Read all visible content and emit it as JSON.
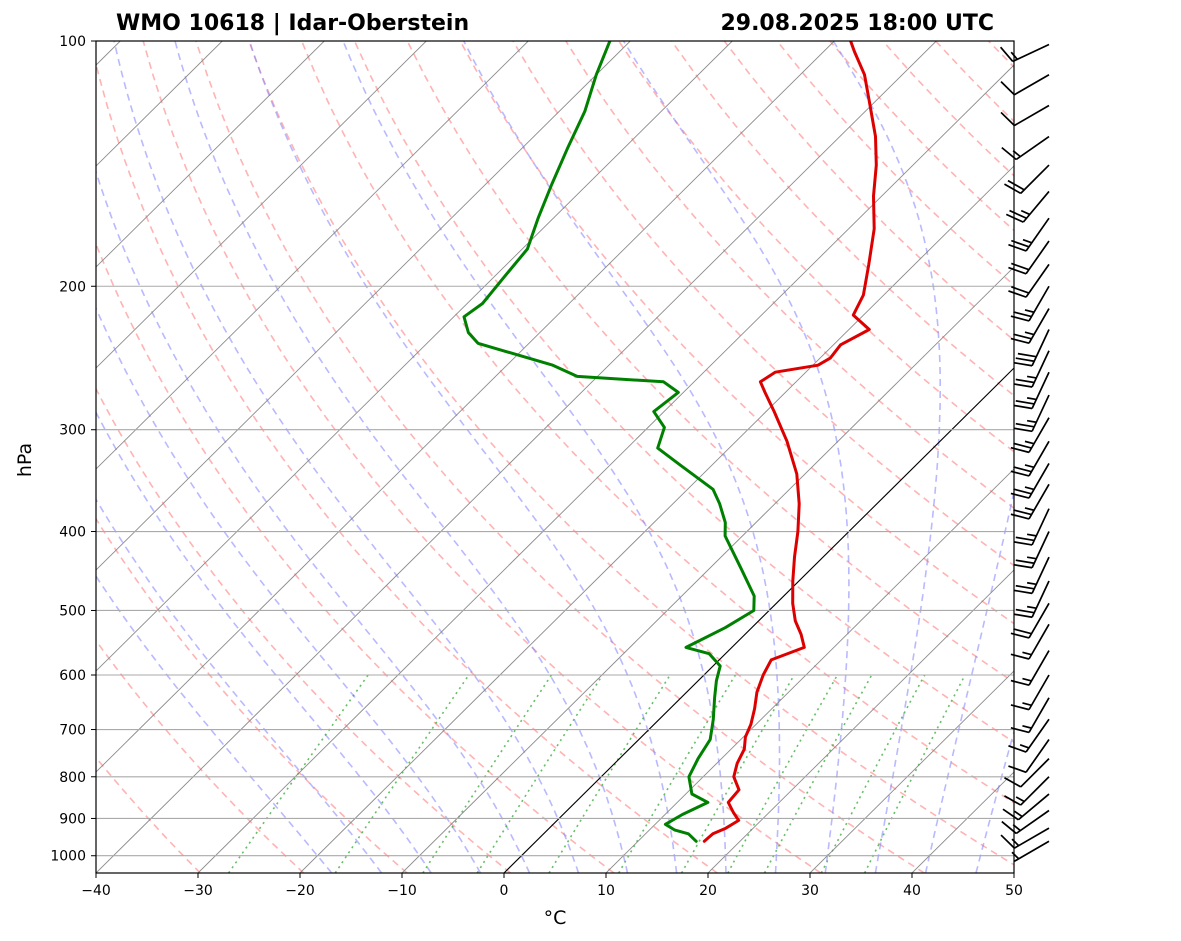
{
  "chart_data": {
    "type": "line",
    "title_left": "WMO 10618 | Idar-Oberstein",
    "title_right": "29.08.2025 18:00 UTC",
    "xlabel": "°C",
    "ylabel": "hPa",
    "x_range": [
      -40,
      50
    ],
    "x_ticks": [
      -40,
      -30,
      -20,
      -10,
      0,
      10,
      20,
      30,
      40,
      50
    ],
    "y_range_hpa": [
      1050,
      100
    ],
    "y_scale": "log",
    "y_ticks": [
      100,
      200,
      300,
      400,
      500,
      600,
      700,
      800,
      900,
      1000
    ],
    "grid": true,
    "skew": "skew-T log-p",
    "colors": {
      "temperature": "#dd0000",
      "dewpoint": "#008000",
      "dry_adiabats": "#ff8080",
      "moist_adiabats": "#8080ff",
      "mixing_ratio": "#33aa33",
      "isotherms": "#808080",
      "zero_isotherm": "#000000"
    },
    "series": [
      {
        "key": "temperature",
        "points": [
          [
            16.5,
            960
          ],
          [
            16.6,
            940
          ],
          [
            17.3,
            925
          ],
          [
            17.8,
            905
          ],
          [
            16.5,
            885
          ],
          [
            15.0,
            860
          ],
          [
            14.8,
            830
          ],
          [
            13.0,
            800
          ],
          [
            12.0,
            770
          ],
          [
            11.3,
            740
          ],
          [
            10.2,
            715
          ],
          [
            9.5,
            690
          ],
          [
            8.3,
            660
          ],
          [
            6.9,
            630
          ],
          [
            5.8,
            600
          ],
          [
            5.1,
            575
          ],
          [
            7.1,
            555
          ],
          [
            5.5,
            535
          ],
          [
            3.6,
            515
          ],
          [
            1.6,
            490
          ],
          [
            -0.6,
            460
          ],
          [
            -2.8,
            430
          ],
          [
            -5.0,
            400
          ],
          [
            -7.6,
            370
          ],
          [
            -10.8,
            340
          ],
          [
            -15.0,
            310
          ],
          [
            -19.2,
            285
          ],
          [
            -22.0,
            270
          ],
          [
            -23.5,
            262
          ],
          [
            -23.0,
            255
          ],
          [
            -19.5,
            250
          ],
          [
            -19.0,
            245
          ],
          [
            -19.3,
            236
          ],
          [
            -18.0,
            226
          ],
          [
            -21.0,
            217
          ],
          [
            -22.0,
            205
          ],
          [
            -24.5,
            188
          ],
          [
            -27.5,
            170
          ],
          [
            -30.8,
            155
          ],
          [
            -33.6,
            142
          ],
          [
            -36.5,
            131
          ],
          [
            -40.8,
            118
          ],
          [
            -43.7,
            110
          ],
          [
            -47.0,
            103
          ],
          [
            -48.4,
            100
          ]
        ]
      },
      {
        "key": "dewpoint",
        "points": [
          [
            15.7,
            960
          ],
          [
            14.2,
            940
          ],
          [
            12.5,
            930
          ],
          [
            11.0,
            915
          ],
          [
            11.7,
            890
          ],
          [
            13.0,
            860
          ],
          [
            10.6,
            840
          ],
          [
            8.6,
            800
          ],
          [
            7.7,
            760
          ],
          [
            7.0,
            720
          ],
          [
            5.3,
            680
          ],
          [
            3.3,
            640
          ],
          [
            1.8,
            610
          ],
          [
            0.7,
            585
          ],
          [
            -1.6,
            565
          ],
          [
            -4.5,
            555
          ],
          [
            -2.6,
            525
          ],
          [
            -1.5,
            500
          ],
          [
            -2.9,
            480
          ],
          [
            -6.8,
            445
          ],
          [
            -11.7,
            405
          ],
          [
            -13.0,
            390
          ],
          [
            -15.4,
            370
          ],
          [
            -17.5,
            355
          ],
          [
            -23.0,
            332
          ],
          [
            -27.0,
            316
          ],
          [
            -28.4,
            298
          ],
          [
            -31.0,
            285
          ],
          [
            -30.5,
            270
          ],
          [
            -33.0,
            262
          ],
          [
            -42.0,
            258
          ],
          [
            -45.5,
            250
          ],
          [
            -55.0,
            235
          ],
          [
            -57.0,
            228
          ],
          [
            -59.0,
            218
          ],
          [
            -58.5,
            210
          ],
          [
            -59.0,
            195
          ],
          [
            -59.5,
            180
          ],
          [
            -61.5,
            165
          ],
          [
            -63.5,
            150
          ],
          [
            -65.6,
            135
          ],
          [
            -67.5,
            122
          ],
          [
            -70.0,
            110
          ],
          [
            -72.0,
            100
          ]
        ]
      }
    ],
    "wind_barbs": [
      {
        "p": 960,
        "speed_kt": 5,
        "dir_deg": 240
      },
      {
        "p": 925,
        "speed_kt": 15,
        "dir_deg": 240
      },
      {
        "p": 880,
        "speed_kt": 15,
        "dir_deg": 235
      },
      {
        "p": 840,
        "speed_kt": 15,
        "dir_deg": 230
      },
      {
        "p": 800,
        "speed_kt": 15,
        "dir_deg": 225
      },
      {
        "p": 760,
        "speed_kt": 10,
        "dir_deg": 225
      },
      {
        "p": 720,
        "speed_kt": 10,
        "dir_deg": 215
      },
      {
        "p": 680,
        "speed_kt": 15,
        "dir_deg": 215
      },
      {
        "p": 640,
        "speed_kt": 15,
        "dir_deg": 210
      },
      {
        "p": 600,
        "speed_kt": 15,
        "dir_deg": 210
      },
      {
        "p": 560,
        "speed_kt": 15,
        "dir_deg": 210
      },
      {
        "p": 520,
        "speed_kt": 15,
        "dir_deg": 210
      },
      {
        "p": 490,
        "speed_kt": 20,
        "dir_deg": 210
      },
      {
        "p": 460,
        "speed_kt": 25,
        "dir_deg": 205
      },
      {
        "p": 430,
        "speed_kt": 25,
        "dir_deg": 205
      },
      {
        "p": 400,
        "speed_kt": 25,
        "dir_deg": 205
      },
      {
        "p": 375,
        "speed_kt": 25,
        "dir_deg": 205
      },
      {
        "p": 350,
        "speed_kt": 25,
        "dir_deg": 210
      },
      {
        "p": 330,
        "speed_kt": 25,
        "dir_deg": 210
      },
      {
        "p": 310,
        "speed_kt": 25,
        "dir_deg": 210
      },
      {
        "p": 290,
        "speed_kt": 25,
        "dir_deg": 210
      },
      {
        "p": 272,
        "speed_kt": 25,
        "dir_deg": 205
      },
      {
        "p": 255,
        "speed_kt": 25,
        "dir_deg": 205
      },
      {
        "p": 240,
        "speed_kt": 25,
        "dir_deg": 205
      },
      {
        "p": 226,
        "speed_kt": 30,
        "dir_deg": 205
      },
      {
        "p": 213,
        "speed_kt": 25,
        "dir_deg": 210
      },
      {
        "p": 200,
        "speed_kt": 25,
        "dir_deg": 210
      },
      {
        "p": 188,
        "speed_kt": 20,
        "dir_deg": 215
      },
      {
        "p": 176,
        "speed_kt": 20,
        "dir_deg": 215
      },
      {
        "p": 165,
        "speed_kt": 25,
        "dir_deg": 215
      },
      {
        "p": 153,
        "speed_kt": 25,
        "dir_deg": 220
      },
      {
        "p": 142,
        "speed_kt": 20,
        "dir_deg": 225
      },
      {
        "p": 131,
        "speed_kt": 15,
        "dir_deg": 235
      },
      {
        "p": 120,
        "speed_kt": 10,
        "dir_deg": 240
      },
      {
        "p": 110,
        "speed_kt": 10,
        "dir_deg": 240
      },
      {
        "p": 101,
        "speed_kt": 15,
        "dir_deg": 245
      }
    ]
  }
}
